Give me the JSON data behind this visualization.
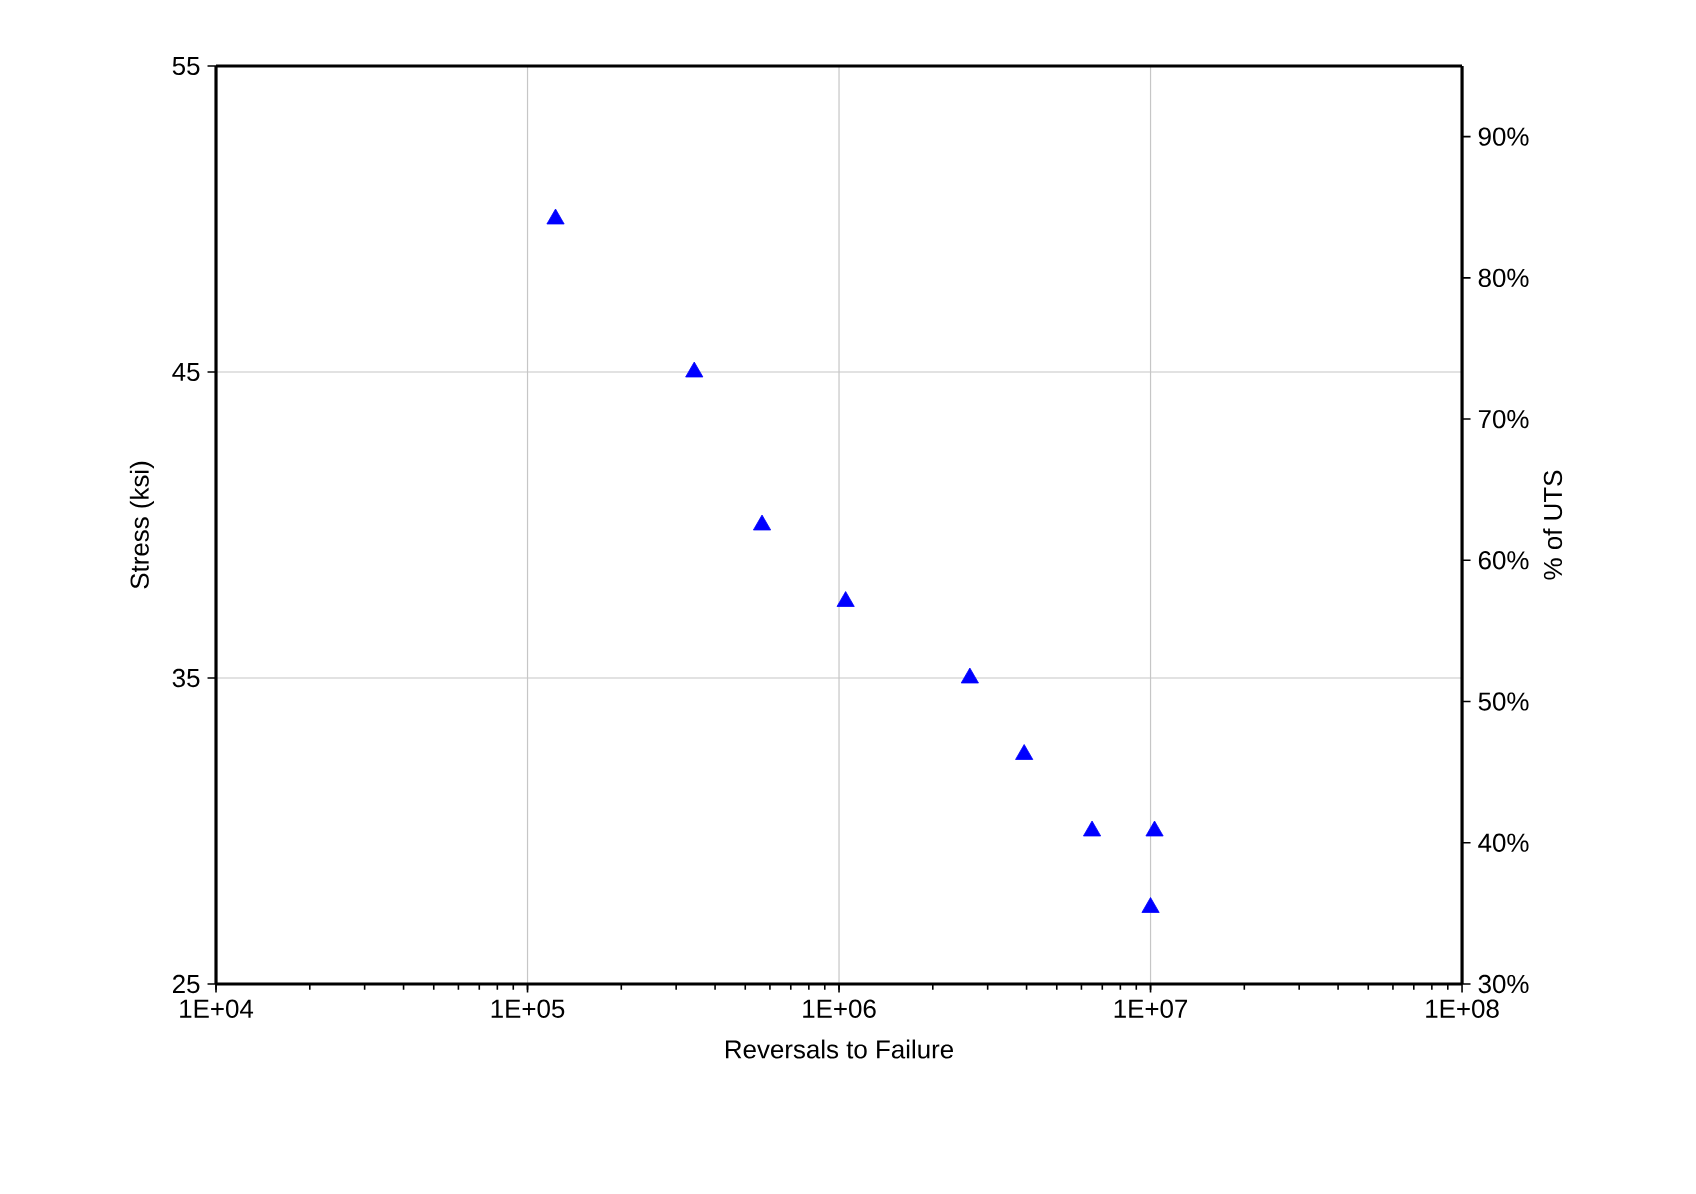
{
  "chart_data": {
    "type": "scatter",
    "xlabel": "Reversals to Failure",
    "ylabel": "Stress (ksi)",
    "y2label": "% of UTS",
    "x": [
      123000,
      343000,
      566000,
      1050000,
      2630000,
      3930000,
      6490000,
      10300000,
      10000000
    ],
    "series": [
      {
        "color": "#0000ff",
        "values": [
          50,
          45,
          40,
          37.5,
          35,
          32.5,
          30,
          30,
          27.5
        ]
      }
    ],
    "marker": "triangle",
    "log": "x",
    "grid": true,
    "xlim": [
      10000,
      100000000
    ],
    "xticks": [
      {
        "value": 10000,
        "label": "1E+04"
      },
      {
        "value": 100000,
        "label": "1E+05"
      },
      {
        "value": 1000000,
        "label": "1E+06"
      },
      {
        "value": 10000000,
        "label": "1E+07"
      },
      {
        "value": 100000000,
        "label": "1E+08"
      }
    ],
    "ylim": [
      25,
      55
    ],
    "yticks": [
      25,
      35,
      45,
      55
    ],
    "y2lim": [
      30,
      95
    ],
    "y2ticks": [
      {
        "value": 30,
        "label": "30%"
      },
      {
        "value": 40,
        "label": "40%"
      },
      {
        "value": 50,
        "label": "50%"
      },
      {
        "value": 60,
        "label": "60%"
      },
      {
        "value": 70,
        "label": "70%"
      },
      {
        "value": 80,
        "label": "80%"
      },
      {
        "value": 90,
        "label": "90%"
      }
    ]
  }
}
